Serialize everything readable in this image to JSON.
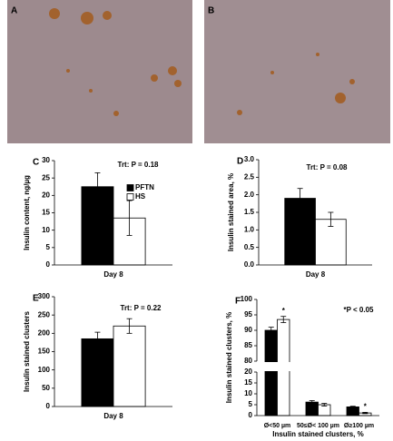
{
  "images": [
    {
      "panel": "A"
    },
    {
      "panel": "B"
    }
  ],
  "chart_data": [
    {
      "type": "bar",
      "panel": "C",
      "y_label": "Insulin content, ng/µg",
      "categories": [
        "Day 8"
      ],
      "series": [
        {
          "name": "PFTN",
          "color": "#000000",
          "values": [
            22.5
          ],
          "errors": [
            4
          ]
        },
        {
          "name": "HS",
          "color": "#ffffff",
          "values": [
            13.5
          ],
          "errors": [
            5
          ]
        }
      ],
      "ylim": [
        0,
        30
      ],
      "yticks": [
        0,
        5,
        10,
        15,
        20,
        25,
        30
      ],
      "annotation": "Trt: P = 0.18"
    },
    {
      "type": "bar",
      "panel": "D",
      "y_label": "Insulin stained area, %",
      "categories": [
        "Day 8"
      ],
      "series": [
        {
          "color": "#000000",
          "values": [
            1.9
          ],
          "errors": [
            0.28
          ]
        },
        {
          "color": "#ffffff",
          "values": [
            1.3
          ],
          "errors": [
            0.2
          ]
        }
      ],
      "ylim": [
        0,
        3
      ],
      "yticks": [
        {
          "value": 0,
          "label": "0.0"
        },
        0.5,
        {
          "value": 1,
          "label": "1.0"
        },
        1.5,
        {
          "value": 2,
          "label": "2.0"
        },
        2.5,
        {
          "value": 3,
          "label": "3.0"
        }
      ],
      "annotation": "Trt: P = 0.08"
    },
    {
      "type": "bar",
      "panel": "E",
      "y_label": "Insulin stained clusters",
      "categories": [
        "Day 8"
      ],
      "series": [
        {
          "color": "#000000",
          "values": [
            185
          ],
          "errors": [
            18
          ]
        },
        {
          "color": "#ffffff",
          "values": [
            220
          ],
          "errors": [
            20
          ]
        }
      ],
      "ylim": [
        0,
        300
      ],
      "yticks": [
        0,
        50,
        100,
        150,
        200,
        250,
        300
      ],
      "annotation": "Trt: P = 0.22"
    },
    {
      "type": "bar",
      "panel": "F",
      "y_label": "Insulin stained clusters, %",
      "x_label": "Insulin stained clusters, %",
      "categories": [
        "Ø<50 µm",
        "50≤Ø< 100 µm",
        "Ø≥100 µm"
      ],
      "series": [
        {
          "color": "#000000",
          "values": [
            90,
            6.2,
            4
          ],
          "errors": [
            1,
            0.7,
            0.3
          ]
        },
        {
          "color": "#ffffff",
          "values": [
            93.5,
            5,
            1.2
          ],
          "errors": [
            1,
            0.6,
            0.3
          ],
          "markers": [
            "*",
            null,
            "*"
          ]
        }
      ],
      "ylim": [
        0,
        100
      ],
      "ybreak": [
        20,
        80
      ],
      "yticks": [
        0,
        5,
        10,
        15,
        20,
        80,
        85,
        90,
        95,
        100
      ],
      "annotation": "*P < 0.05"
    }
  ]
}
